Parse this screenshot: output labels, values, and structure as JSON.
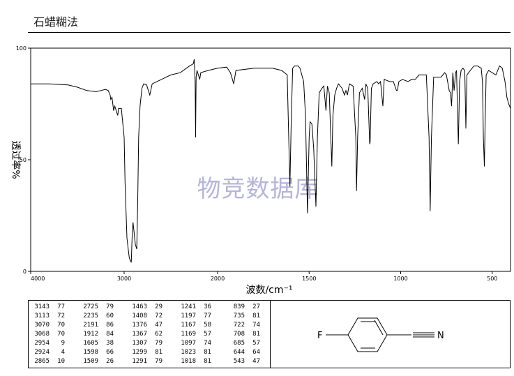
{
  "page_title": "石蜡糊法",
  "watermark": "物竞数据库",
  "chart_data": {
    "type": "line",
    "xlabel": "波数/cm⁻¹",
    "ylabel": "透过率%",
    "xlim": [
      4000,
      400
    ],
    "ylim": [
      0,
      100
    ],
    "x_ticks": [
      4000,
      3000,
      2000,
      1500,
      1000,
      500
    ],
    "x_tick_labels": [
      "4000",
      "3000",
      "2000",
      "1500",
      "1000",
      "500"
    ],
    "y_ticks": [
      0,
      50,
      100
    ],
    "y_tick_labels": [
      "0",
      "50",
      "100"
    ],
    "grid": false,
    "series": [
      {
        "points": [
          [
            4000,
            84
          ],
          [
            3800,
            84
          ],
          [
            3600,
            83.5
          ],
          [
            3500,
            82.5
          ],
          [
            3400,
            81
          ],
          [
            3300,
            80.5
          ],
          [
            3250,
            81
          ],
          [
            3200,
            81.5
          ],
          [
            3170,
            81
          ],
          [
            3150,
            79
          ],
          [
            3143,
            77
          ],
          [
            3130,
            78
          ],
          [
            3113,
            72
          ],
          [
            3100,
            74
          ],
          [
            3070,
            70
          ],
          [
            3068,
            70
          ],
          [
            3060,
            73
          ],
          [
            3030,
            73
          ],
          [
            3000,
            60
          ],
          [
            2990,
            40
          ],
          [
            2970,
            15
          ],
          [
            2954,
            9
          ],
          [
            2945,
            6
          ],
          [
            2935,
            5
          ],
          [
            2924,
            4
          ],
          [
            2915,
            15
          ],
          [
            2905,
            22
          ],
          [
            2895,
            18
          ],
          [
            2880,
            12
          ],
          [
            2865,
            10
          ],
          [
            2855,
            30
          ],
          [
            2845,
            60
          ],
          [
            2830,
            74
          ],
          [
            2810,
            82
          ],
          [
            2790,
            84
          ],
          [
            2760,
            83.5
          ],
          [
            2725,
            79
          ],
          [
            2700,
            84
          ],
          [
            2600,
            86
          ],
          [
            2500,
            88
          ],
          [
            2400,
            89
          ],
          [
            2300,
            92
          ],
          [
            2260,
            93
          ],
          [
            2250,
            95
          ],
          [
            2240,
            85
          ],
          [
            2235,
            60
          ],
          [
            2230,
            87
          ],
          [
            2220,
            90
          ],
          [
            2191,
            86
          ],
          [
            2180,
            89
          ],
          [
            2100,
            90
          ],
          [
            2000,
            91
          ],
          [
            1950,
            91.5
          ],
          [
            1930,
            89
          ],
          [
            1912,
            84
          ],
          [
            1900,
            90
          ],
          [
            1800,
            91
          ],
          [
            1700,
            91
          ],
          [
            1650,
            90
          ],
          [
            1620,
            88
          ],
          [
            1605,
            38
          ],
          [
            1598,
            66
          ],
          [
            1590,
            91
          ],
          [
            1580,
            92
          ],
          [
            1560,
            92
          ],
          [
            1550,
            91
          ],
          [
            1530,
            85
          ],
          [
            1520,
            70
          ],
          [
            1509,
            26
          ],
          [
            1500,
            60
          ],
          [
            1495,
            67
          ],
          [
            1485,
            66
          ],
          [
            1475,
            55
          ],
          [
            1463,
            29
          ],
          [
            1455,
            60
          ],
          [
            1445,
            80
          ],
          [
            1430,
            82
          ],
          [
            1420,
            83
          ],
          [
            1408,
            72
          ],
          [
            1400,
            83
          ],
          [
            1390,
            80
          ],
          [
            1376,
            47
          ],
          [
            1370,
            70
          ],
          [
            1360,
            79
          ],
          [
            1350,
            82
          ],
          [
            1340,
            84
          ],
          [
            1330,
            83
          ],
          [
            1320,
            82
          ],
          [
            1307,
            79
          ],
          [
            1299,
            81
          ],
          [
            1291,
            79
          ],
          [
            1280,
            84
          ],
          [
            1260,
            83
          ],
          [
            1245,
            60
          ],
          [
            1241,
            36
          ],
          [
            1235,
            60
          ],
          [
            1225,
            80
          ],
          [
            1210,
            82
          ],
          [
            1197,
            77
          ],
          [
            1190,
            84
          ],
          [
            1180,
            82
          ],
          [
            1169,
            57
          ],
          [
            1167,
            58
          ],
          [
            1160,
            82
          ],
          [
            1150,
            84
          ],
          [
            1130,
            85
          ],
          [
            1120,
            84
          ],
          [
            1110,
            85
          ],
          [
            1097,
            74
          ],
          [
            1090,
            86
          ],
          [
            1060,
            85
          ],
          [
            1040,
            85
          ],
          [
            1023,
            81
          ],
          [
            1018,
            81
          ],
          [
            1010,
            85
          ],
          [
            990,
            86
          ],
          [
            960,
            85
          ],
          [
            940,
            86
          ],
          [
            920,
            86
          ],
          [
            900,
            88
          ],
          [
            880,
            88
          ],
          [
            860,
            88
          ],
          [
            845,
            60
          ],
          [
            839,
            27
          ],
          [
            832,
            60
          ],
          [
            820,
            87
          ],
          [
            800,
            87
          ],
          [
            780,
            87
          ],
          [
            760,
            89
          ],
          [
            750,
            88
          ],
          [
            735,
            81
          ],
          [
            728,
            80
          ],
          [
            722,
            74
          ],
          [
            715,
            89
          ],
          [
            708,
            81
          ],
          [
            700,
            89
          ],
          [
            695,
            90
          ],
          [
            685,
            57
          ],
          [
            678,
            85
          ],
          [
            670,
            90
          ],
          [
            660,
            91
          ],
          [
            650,
            90
          ],
          [
            644,
            64
          ],
          [
            638,
            88
          ],
          [
            620,
            90
          ],
          [
            600,
            92
          ],
          [
            580,
            92
          ],
          [
            560,
            91
          ],
          [
            553,
            85
          ],
          [
            548,
            60
          ],
          [
            543,
            47
          ],
          [
            538,
            70
          ],
          [
            533,
            88
          ],
          [
            520,
            90
          ],
          [
            500,
            89
          ],
          [
            480,
            88
          ],
          [
            460,
            92
          ],
          [
            445,
            91
          ],
          [
            430,
            85
          ],
          [
            420,
            78
          ],
          [
            410,
            75
          ],
          [
            400,
            73
          ]
        ]
      }
    ]
  },
  "peak_table": {
    "columns": [
      [
        [
          "3143",
          "77"
        ],
        [
          "3113",
          "72"
        ],
        [
          "3070",
          "70"
        ],
        [
          "3068",
          "70"
        ],
        [
          "2954",
          "9"
        ],
        [
          "2924",
          "4"
        ],
        [
          "2865",
          "10"
        ]
      ],
      [
        [
          "2725",
          "79"
        ],
        [
          "2235",
          "60"
        ],
        [
          "2191",
          "86"
        ],
        [
          "1912",
          "84"
        ],
        [
          "1605",
          "38"
        ],
        [
          "1598",
          "66"
        ],
        [
          "1509",
          "26"
        ]
      ],
      [
        [
          "1463",
          "29"
        ],
        [
          "1408",
          "72"
        ],
        [
          "1376",
          "47"
        ],
        [
          "1367",
          "62"
        ],
        [
          "1307",
          "79"
        ],
        [
          "1299",
          "81"
        ],
        [
          "1291",
          "79"
        ]
      ],
      [
        [
          "1241",
          "36"
        ],
        [
          "1197",
          "77"
        ],
        [
          "1167",
          "58"
        ],
        [
          "1169",
          "57"
        ],
        [
          "1097",
          "74"
        ],
        [
          "1023",
          "81"
        ],
        [
          "1018",
          "81"
        ]
      ],
      [
        [
          "839",
          "27"
        ],
        [
          "735",
          "81"
        ],
        [
          "722",
          "74"
        ],
        [
          "708",
          "81"
        ],
        [
          "685",
          "57"
        ],
        [
          "644",
          "64"
        ],
        [
          "543",
          "47"
        ]
      ]
    ]
  },
  "structure": {
    "atom_left": "F",
    "atom_right": "N"
  }
}
